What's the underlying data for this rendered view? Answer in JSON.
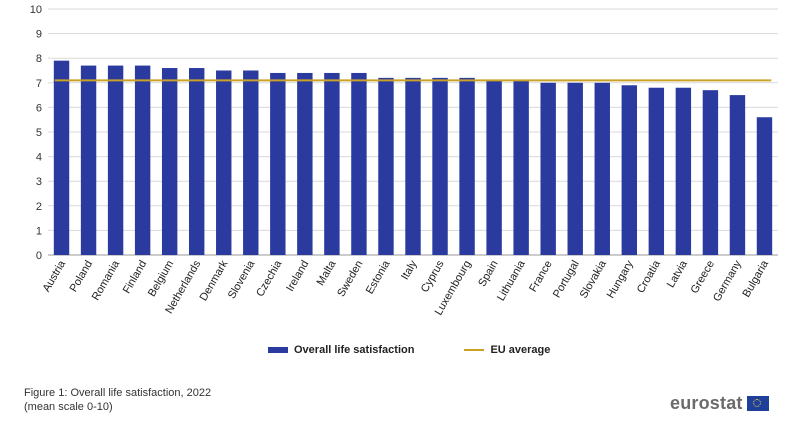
{
  "chart_data": {
    "type": "bar",
    "categories": [
      "Austria",
      "Poland",
      "Romania",
      "Finland",
      "Belgium",
      "Netherlands",
      "Denmark",
      "Slovenia",
      "Czechia",
      "Ireland",
      "Malta",
      "Sweden",
      "Estonia",
      "Italy",
      "Cyprus",
      "Luxembourg",
      "Spain",
      "Lithuania",
      "France",
      "Portugal",
      "Slovakia",
      "Hungary",
      "Croatia",
      "Latvia",
      "Greece",
      "Germany",
      "Bulgaria"
    ],
    "series": [
      {
        "name": "Overall life satisfaction",
        "values": [
          7.9,
          7.7,
          7.7,
          7.7,
          7.6,
          7.6,
          7.5,
          7.5,
          7.4,
          7.4,
          7.4,
          7.4,
          7.2,
          7.2,
          7.2,
          7.2,
          7.1,
          7.1,
          7.0,
          7.0,
          7.0,
          6.9,
          6.8,
          6.8,
          6.7,
          6.5,
          5.6
        ],
        "color": "#2a3a9e"
      },
      {
        "name": "EU average",
        "type": "line",
        "value": 7.1,
        "color": "#c9a227"
      }
    ],
    "ylim": [
      0,
      10
    ],
    "yticks": [
      0,
      1,
      2,
      3,
      4,
      5,
      6,
      7,
      8,
      9,
      10
    ],
    "grid": true,
    "legend_position": "bottom"
  },
  "legend": {
    "bar_label": "Overall life satisfaction",
    "line_label": "EU average"
  },
  "caption": {
    "line1": "Figure 1: Overall life satisfaction, 2022",
    "line2": "(mean scale 0-10)"
  },
  "logo": {
    "text": "eurostat"
  }
}
